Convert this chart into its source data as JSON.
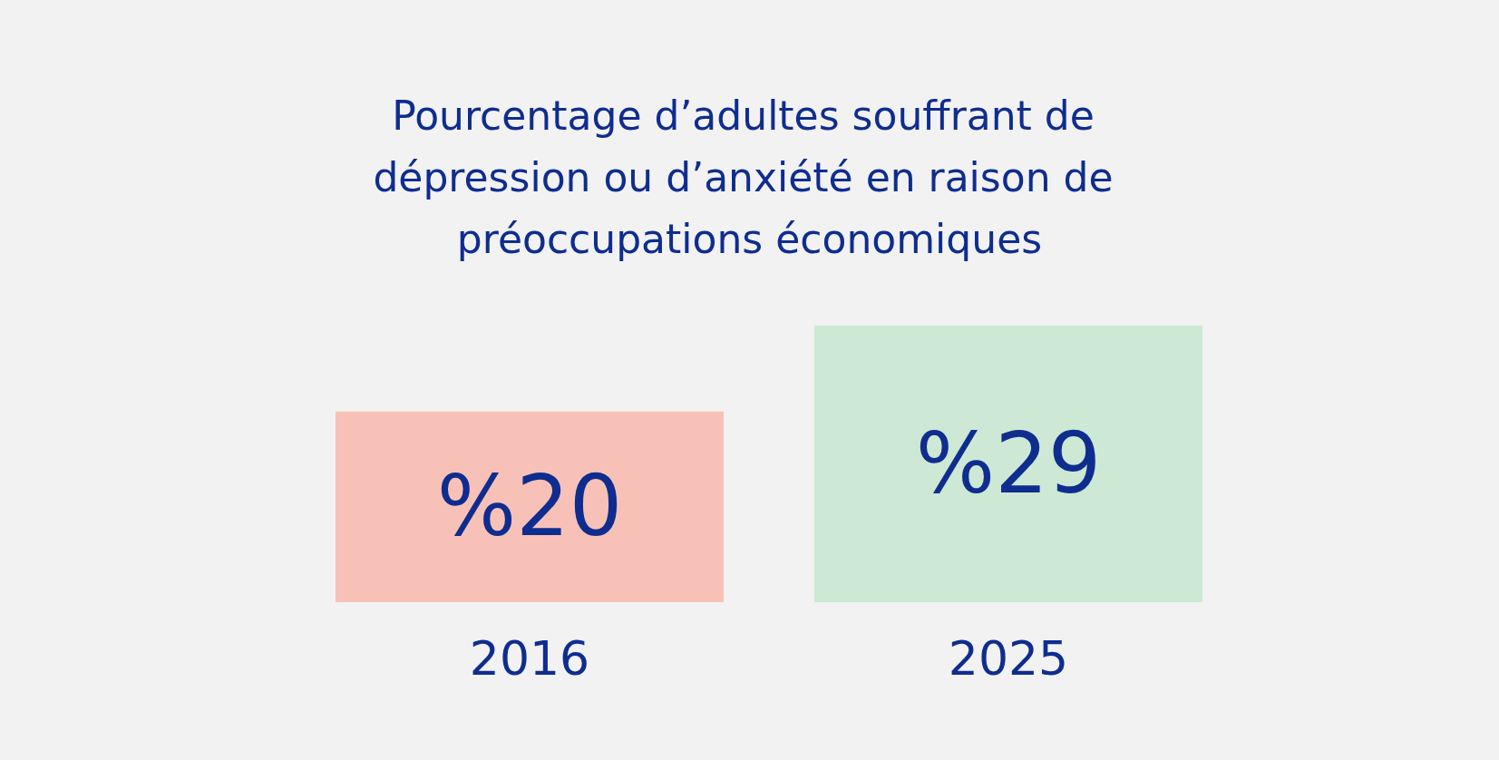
{
  "chart_data": {
    "type": "bar",
    "title": "Pourcentage d’adultes souffrant de dépression ou d’anxiété en raison de préoccupations économiques",
    "categories": [
      "2016",
      "2025"
    ],
    "values": [
      20,
      29
    ],
    "colors": [
      "#f8c1b8",
      "#cde8d4"
    ],
    "value_labels": [
      "%20",
      "%29"
    ]
  }
}
